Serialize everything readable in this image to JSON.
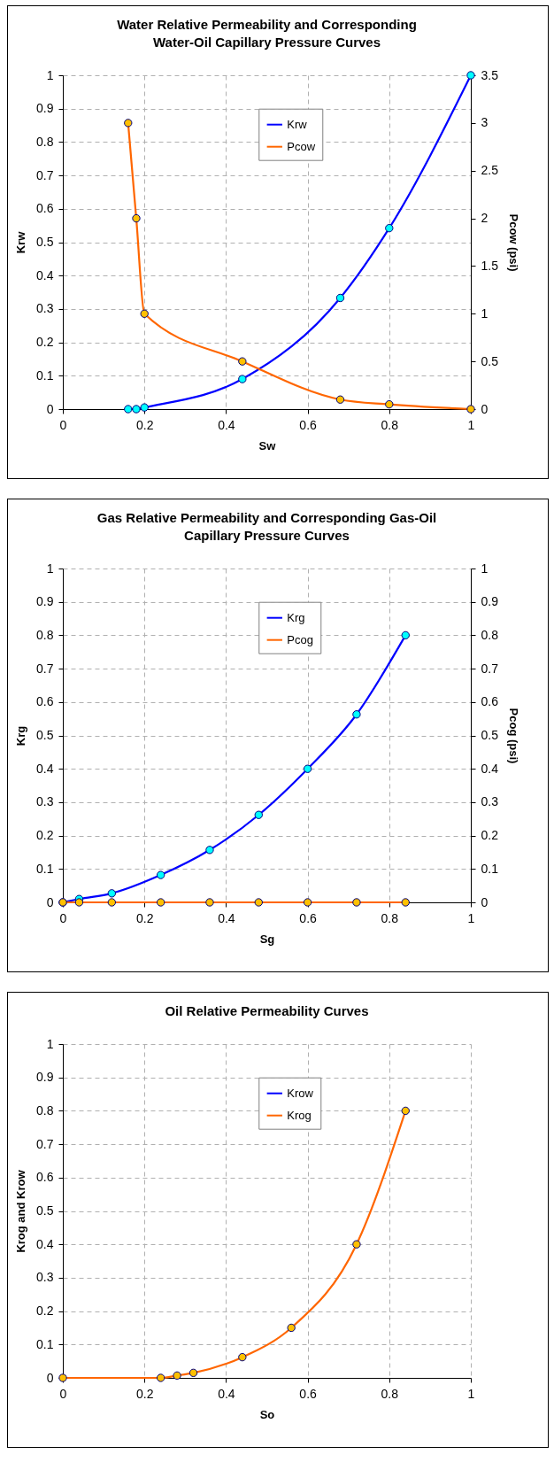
{
  "chart_data": [
    {
      "type": "line",
      "title": "Water Relative Permeability and Corresponding Water-Oil Capillary Pressure Curves",
      "xlabel": "Sw",
      "ylabel": "Krw",
      "y2label": "Pcow (psi)",
      "xlim": [
        0,
        1
      ],
      "xticks": [
        0,
        0.2,
        0.4,
        0.6,
        0.8,
        1
      ],
      "ylim": [
        0,
        1
      ],
      "yticks": [
        0,
        0.1,
        0.2,
        0.3,
        0.4,
        0.5,
        0.6,
        0.7,
        0.8,
        0.9,
        1
      ],
      "y2lim": [
        0,
        3.5
      ],
      "y2ticks": [
        0,
        0.5,
        1,
        1.5,
        2,
        2.5,
        3,
        3.5
      ],
      "grid": true,
      "legend": "top",
      "marker": "circle",
      "line_style": "solid",
      "series": [
        {
          "name": "Krw",
          "color": "#0000ff",
          "x": [
            0.16,
            0.18,
            0.2,
            0.44,
            0.68,
            0.8,
            1
          ],
          "values": [
            0,
            0,
            0.005,
            0.09,
            0.333,
            0.542,
            1
          ]
        },
        {
          "name": "Pcow",
          "color": "#ff6600",
          "axis": "y2",
          "x": [
            0.16,
            0.18,
            0.2,
            0.44,
            0.68,
            0.8,
            1
          ],
          "values": [
            3,
            2,
            1,
            0.5,
            0.1,
            0.05,
            0
          ]
        }
      ]
    },
    {
      "type": "line",
      "title": "Gas Relative Permeability and Corresponding Gas-Oil Capillary Pressure Curves",
      "xlabel": "Sg",
      "ylabel": "Krg",
      "y2label": "Pcog (psi)",
      "xlim": [
        0,
        1
      ],
      "xticks": [
        0,
        0.2,
        0.4,
        0.6,
        0.8,
        1
      ],
      "ylim": [
        0,
        1
      ],
      "yticks": [
        0,
        0.1,
        0.2,
        0.3,
        0.4,
        0.5,
        0.6,
        0.7,
        0.8,
        0.9,
        1
      ],
      "y2lim": [
        0,
        1
      ],
      "y2ticks": [
        0,
        0.1,
        0.2,
        0.3,
        0.4,
        0.5,
        0.6,
        0.7,
        0.8,
        0.9,
        1
      ],
      "grid": true,
      "legend": "top",
      "marker": "circle",
      "line_style": "solid",
      "series": [
        {
          "name": "Krg",
          "color": "#0000ff",
          "x": [
            0,
            0.04,
            0.12,
            0.24,
            0.36,
            0.48,
            0.6,
            0.72,
            0.84
          ],
          "values": [
            0,
            0.01,
            0.027,
            0.082,
            0.157,
            0.262,
            0.4,
            0.563,
            0.8
          ]
        },
        {
          "name": "Pcog",
          "color": "#ff6600",
          "axis": "y2",
          "x": [
            0,
            0.04,
            0.12,
            0.24,
            0.36,
            0.48,
            0.6,
            0.72,
            0.84
          ],
          "values": [
            0,
            0,
            0,
            0,
            0,
            0,
            0,
            0,
            0
          ]
        }
      ]
    },
    {
      "type": "line",
      "title": "Oil Relative Permeability Curves",
      "xlabel": "So",
      "ylabel": "Krog and Krow",
      "xlim": [
        0,
        1
      ],
      "xticks": [
        0,
        0.2,
        0.4,
        0.6,
        0.8,
        1
      ],
      "ylim": [
        0,
        1
      ],
      "yticks": [
        0,
        0.1,
        0.2,
        0.3,
        0.4,
        0.5,
        0.6,
        0.7,
        0.8,
        0.9,
        1
      ],
      "grid": true,
      "legend": "top",
      "marker": "circle",
      "line_style": "solid",
      "series": [
        {
          "name": "Krow",
          "color": "#0000ff",
          "values": [
            null,
            null,
            null,
            null,
            null,
            null,
            null,
            null
          ]
        },
        {
          "name": "Krog",
          "color": "#ff6600",
          "x": [
            0,
            0.24,
            0.28,
            0.32,
            0.44,
            0.56,
            0.72,
            0.84
          ],
          "values": [
            0,
            0,
            0.007,
            0.015,
            0.062,
            0.15,
            0.4,
            0.8
          ]
        }
      ]
    }
  ]
}
